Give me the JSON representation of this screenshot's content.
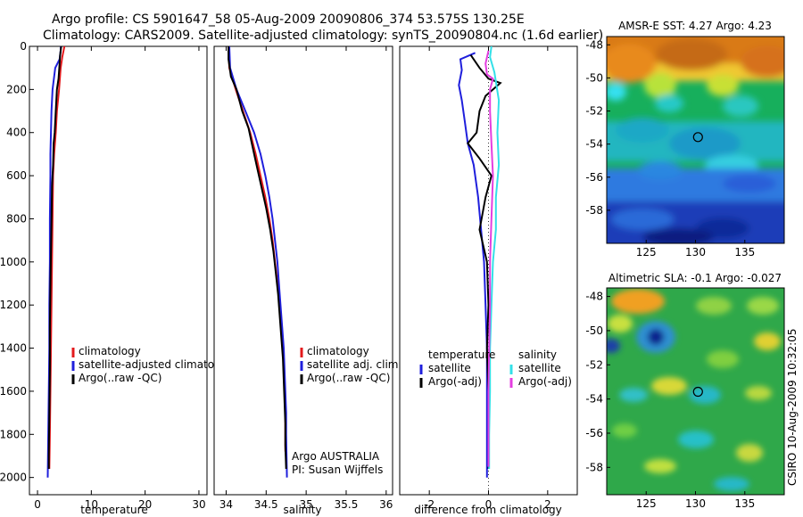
{
  "header": {
    "line1": "Argo profile: CS 5901647_58 05-Aug-2009 20090806_374 53.575S 130.25E",
    "line2": "Climatology: CARS2009. Satellite-adjusted climatology: synTS_20090804.nc (1.6d earlier)"
  },
  "colors": {
    "climatology": "#e31a1c",
    "satellite": "#1f1fdc",
    "argo": "#000000",
    "satellite_diff": "#33e0e8",
    "argo_adj_diff": "#e43ee0",
    "map_marker": "#000000"
  },
  "chart_data": [
    {
      "type": "line",
      "id": "temperature",
      "xlabel": "temperature",
      "ylabel": "",
      "xlim": [
        -1.5,
        31.5
      ],
      "ylim": [
        2080,
        0
      ],
      "xticks": [
        0,
        10,
        20,
        30
      ],
      "yticks": [
        0,
        200,
        400,
        600,
        800,
        1000,
        1200,
        1400,
        1600,
        1800,
        2000
      ],
      "legend": {
        "position": "lower-right",
        "entries": [
          "climatology",
          "satellite-adjusted climatology",
          "Argo(..raw -QC)"
        ]
      },
      "series": [
        {
          "name": "climatology",
          "color_key": "climatology",
          "points": [
            [
              5.0,
              0
            ],
            [
              4.6,
              50
            ],
            [
              4.3,
              100
            ],
            [
              4.0,
              200
            ],
            [
              3.6,
              300
            ],
            [
              3.4,
              400
            ],
            [
              3.1,
              500
            ],
            [
              2.9,
              600
            ],
            [
              2.8,
              800
            ],
            [
              2.7,
              1000
            ],
            [
              2.6,
              1200
            ],
            [
              2.5,
              1400
            ],
            [
              2.4,
              1600
            ],
            [
              2.3,
              1800
            ],
            [
              2.2,
              1960
            ]
          ]
        },
        {
          "name": "satellite-adjusted climatology",
          "color_key": "satellite",
          "points": [
            [
              4.3,
              0
            ],
            [
              4.3,
              20
            ],
            [
              4.1,
              60
            ],
            [
              3.3,
              100
            ],
            [
              2.8,
              200
            ],
            [
              2.6,
              300
            ],
            [
              2.5,
              400
            ],
            [
              2.4,
              500
            ],
            [
              2.4,
              600
            ],
            [
              2.3,
              800
            ],
            [
              2.3,
              1000
            ],
            [
              2.2,
              1200
            ],
            [
              2.2,
              1400
            ],
            [
              2.1,
              1600
            ],
            [
              2.0,
              1800
            ],
            [
              1.9,
              2000
            ]
          ]
        },
        {
          "name": "Argo(..raw -QC)",
          "color_key": "argo",
          "points": [
            [
              4.4,
              0
            ],
            [
              4.2,
              40
            ],
            [
              4.1,
              80
            ],
            [
              3.9,
              150
            ],
            [
              3.6,
              200
            ],
            [
              3.4,
              300
            ],
            [
              3.2,
              400
            ],
            [
              3.0,
              450
            ],
            [
              2.9,
              550
            ],
            [
              2.7,
              650
            ],
            [
              2.6,
              800
            ],
            [
              2.5,
              950
            ],
            [
              2.4,
              1100
            ],
            [
              2.3,
              1300
            ],
            [
              2.3,
              1500
            ],
            [
              2.2,
              1700
            ],
            [
              2.1,
              1900
            ],
            [
              2.1,
              1960
            ]
          ]
        }
      ]
    },
    {
      "type": "line",
      "id": "salinity",
      "xlabel": "salinity",
      "ylabel": "",
      "xlim": [
        33.85,
        36.08
      ],
      "ylim": [
        2080,
        0
      ],
      "xticks": [
        34,
        34.5,
        35,
        35.5,
        36
      ],
      "yticks": [],
      "legend": {
        "position": "lower-right",
        "entries": [
          "climatology",
          "satellite adj. clim.",
          "Argo(..raw -QC)"
        ]
      },
      "series": [
        {
          "name": "climatology",
          "color_key": "climatology",
          "points": [
            [
              34.03,
              0
            ],
            [
              34.04,
              100
            ],
            [
              34.12,
              200
            ],
            [
              34.21,
              300
            ],
            [
              34.3,
              400
            ],
            [
              34.37,
              500
            ],
            [
              34.43,
              600
            ],
            [
              34.49,
              700
            ],
            [
              34.54,
              800
            ],
            [
              34.58,
              900
            ],
            [
              34.61,
              1000
            ],
            [
              34.64,
              1100
            ],
            [
              34.67,
              1200
            ],
            [
              34.69,
              1300
            ],
            [
              34.71,
              1400
            ],
            [
              34.72,
              1500
            ],
            [
              34.73,
              1600
            ],
            [
              34.74,
              1700
            ],
            [
              34.74,
              1800
            ],
            [
              34.74,
              1880
            ]
          ]
        },
        {
          "name": "satellite adj. clim.",
          "color_key": "satellite",
          "points": [
            [
              34.04,
              0
            ],
            [
              34.05,
              100
            ],
            [
              34.13,
              200
            ],
            [
              34.24,
              300
            ],
            [
              34.35,
              400
            ],
            [
              34.43,
              500
            ],
            [
              34.49,
              600
            ],
            [
              34.54,
              700
            ],
            [
              34.58,
              800
            ],
            [
              34.61,
              900
            ],
            [
              34.64,
              1000
            ],
            [
              34.66,
              1100
            ],
            [
              34.68,
              1200
            ],
            [
              34.7,
              1300
            ],
            [
              34.72,
              1400
            ],
            [
              34.73,
              1500
            ],
            [
              34.74,
              1600
            ],
            [
              34.75,
              1700
            ],
            [
              34.75,
              1800
            ],
            [
              34.76,
              2000
            ]
          ]
        },
        {
          "name": "Argo(..raw -QC)",
          "color_key": "argo",
          "points": [
            [
              34.03,
              0
            ],
            [
              34.03,
              60
            ],
            [
              34.06,
              140
            ],
            [
              34.13,
              200
            ],
            [
              34.2,
              300
            ],
            [
              34.28,
              380
            ],
            [
              34.32,
              450
            ],
            [
              34.38,
              550
            ],
            [
              34.44,
              650
            ],
            [
              34.5,
              750
            ],
            [
              34.55,
              850
            ],
            [
              34.59,
              950
            ],
            [
              34.62,
              1050
            ],
            [
              34.65,
              1150
            ],
            [
              34.67,
              1250
            ],
            [
              34.69,
              1350
            ],
            [
              34.71,
              1450
            ],
            [
              34.72,
              1550
            ],
            [
              34.73,
              1650
            ],
            [
              34.74,
              1750
            ],
            [
              34.74,
              1850
            ],
            [
              34.75,
              1960
            ]
          ]
        }
      ],
      "annotation": [
        "Argo AUSTRALIA",
        "PI: Susan Wijffels"
      ]
    },
    {
      "type": "line",
      "id": "difference",
      "xlabel": "difference from climatology",
      "ylabel": "",
      "xlim": [
        -3.0,
        3.0
      ],
      "ylim": [
        2080,
        0
      ],
      "xticks": [
        -2,
        0,
        2
      ],
      "yticks": [],
      "legend": {
        "position": "lower-left",
        "entries": [
          "temperature satellite",
          "temperature Argo(-adj)",
          "salinity satellite",
          "salinity Argo(-adj)"
        ]
      },
      "series": [
        {
          "name": "temperature satellite",
          "color_key": "satellite",
          "points": [
            [
              -0.45,
              30
            ],
            [
              -0.95,
              60
            ],
            [
              -0.9,
              110
            ],
            [
              -1.0,
              180
            ],
            [
              -0.9,
              250
            ],
            [
              -0.8,
              350
            ],
            [
              -0.7,
              450
            ],
            [
              -0.5,
              550
            ],
            [
              -0.35,
              700
            ],
            [
              -0.25,
              850
            ],
            [
              -0.15,
              1000
            ],
            [
              -0.1,
              1200
            ],
            [
              -0.05,
              1400
            ],
            [
              -0.05,
              1600
            ],
            [
              -0.05,
              1800
            ],
            [
              -0.05,
              2000
            ]
          ]
        },
        {
          "name": "temperature Argo(-adj)",
          "color_key": "argo",
          "points": [
            [
              -0.6,
              40
            ],
            [
              -0.3,
              100
            ],
            [
              0.0,
              150
            ],
            [
              0.4,
              170
            ],
            [
              -0.1,
              230
            ],
            [
              -0.3,
              300
            ],
            [
              -0.4,
              400
            ],
            [
              -0.7,
              450
            ],
            [
              -0.3,
              520
            ],
            [
              0.1,
              600
            ],
            [
              -0.1,
              700
            ],
            [
              -0.3,
              850
            ],
            [
              -0.05,
              1000
            ],
            [
              0.0,
              1200
            ],
            [
              -0.05,
              1400
            ],
            [
              0.0,
              1600
            ],
            [
              0.0,
              1800
            ],
            [
              0.0,
              1960
            ]
          ]
        },
        {
          "name": "salinity satellite",
          "color_key": "satellite_diff",
          "points": [
            [
              0.1,
              0
            ],
            [
              0.05,
              50
            ],
            [
              0.2,
              120
            ],
            [
              0.35,
              250
            ],
            [
              0.3,
              400
            ],
            [
              0.35,
              550
            ],
            [
              0.25,
              700
            ],
            [
              0.25,
              850
            ],
            [
              0.15,
              1000
            ],
            [
              0.1,
              1200
            ],
            [
              0.05,
              1400
            ],
            [
              0.05,
              1600
            ],
            [
              0.02,
              1800
            ],
            [
              0.02,
              1960
            ]
          ]
        },
        {
          "name": "salinity Argo(-adj)",
          "color_key": "argo_adj_diff",
          "points": [
            [
              0.0,
              20
            ],
            [
              -0.1,
              80
            ],
            [
              -0.05,
              130
            ],
            [
              0.15,
              150
            ],
            [
              0.05,
              200
            ],
            [
              0.05,
              300
            ],
            [
              0.1,
              450
            ],
            [
              0.15,
              600
            ],
            [
              0.1,
              800
            ],
            [
              0.05,
              1000
            ],
            [
              0.05,
              1200
            ],
            [
              0.02,
              1400
            ],
            [
              0.0,
              1600
            ],
            [
              0.0,
              1800
            ],
            [
              0.0,
              1950
            ]
          ]
        }
      ]
    },
    {
      "type": "heatmap",
      "id": "sst-map",
      "title": "AMSR-E SST: 4.27 Argo: 4.23",
      "xlim": [
        121,
        139
      ],
      "ylim": [
        -60,
        -47.5
      ],
      "xticks": [
        125,
        130,
        135
      ],
      "yticks": [
        -48,
        -50,
        -52,
        -54,
        -56,
        -58
      ],
      "marker": {
        "lon": 130.25,
        "lat": -53.575
      }
    },
    {
      "type": "heatmap",
      "id": "sla-map",
      "title": "Altimetric SLA: -0.1 Argo: -0.027",
      "xlim": [
        121,
        139
      ],
      "ylim": [
        -59.6,
        -47.5
      ],
      "xticks": [
        125,
        130,
        135
      ],
      "yticks": [
        -48,
        -50,
        -52,
        -54,
        -56,
        -58
      ],
      "marker": {
        "lon": 130.25,
        "lat": -53.575
      }
    }
  ],
  "footer": {
    "stamp": "CSIRO 10-Aug-2009 10:32:05"
  }
}
